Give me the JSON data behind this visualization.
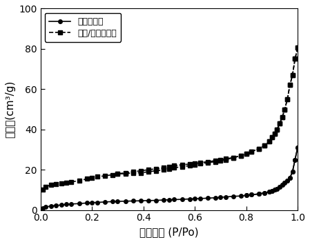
{
  "series1_label": "油页岩半焦",
  "series2_label": "矿物/生物炭材料",
  "series1_x": [
    0.01,
    0.02,
    0.04,
    0.06,
    0.08,
    0.1,
    0.12,
    0.15,
    0.18,
    0.2,
    0.22,
    0.25,
    0.28,
    0.3,
    0.33,
    0.36,
    0.39,
    0.42,
    0.45,
    0.48,
    0.5,
    0.52,
    0.55,
    0.58,
    0.6,
    0.62,
    0.65,
    0.68,
    0.7,
    0.72,
    0.75,
    0.78,
    0.8,
    0.82,
    0.85,
    0.87,
    0.89,
    0.9,
    0.91,
    0.92,
    0.93,
    0.94,
    0.95,
    0.96,
    0.97,
    0.98,
    0.99,
    1.0
  ],
  "series1_y": [
    1.0,
    1.5,
    2.0,
    2.3,
    2.5,
    2.8,
    3.0,
    3.2,
    3.5,
    3.7,
    3.8,
    4.0,
    4.2,
    4.3,
    4.4,
    4.5,
    4.6,
    4.7,
    4.8,
    5.0,
    5.1,
    5.2,
    5.3,
    5.5,
    5.6,
    5.7,
    5.9,
    6.1,
    6.3,
    6.5,
    6.8,
    7.0,
    7.3,
    7.6,
    8.0,
    8.5,
    9.0,
    9.5,
    10.0,
    10.5,
    11.5,
    12.5,
    13.5,
    14.5,
    16.0,
    19.0,
    25.0,
    31.0
  ],
  "series1_desorption_x": [
    1.0,
    0.99,
    0.98,
    0.97,
    0.96,
    0.95,
    0.94,
    0.93,
    0.92,
    0.91,
    0.9,
    0.89,
    0.87,
    0.85,
    0.82,
    0.8
  ],
  "series1_desorption_y": [
    31.0,
    25.0,
    19.0,
    16.0,
    14.5,
    13.5,
    12.5,
    11.5,
    10.5,
    10.0,
    9.5,
    9.0,
    8.5,
    8.0,
    7.6,
    7.3
  ],
  "series2_x": [
    0.01,
    0.02,
    0.04,
    0.06,
    0.08,
    0.1,
    0.12,
    0.15,
    0.18,
    0.2,
    0.22,
    0.25,
    0.28,
    0.3,
    0.33,
    0.36,
    0.39,
    0.42,
    0.45,
    0.48,
    0.5,
    0.52,
    0.55,
    0.58,
    0.6,
    0.62,
    0.65,
    0.68,
    0.7,
    0.72,
    0.75,
    0.78,
    0.8,
    0.82,
    0.85,
    0.87,
    0.89,
    0.9,
    0.91,
    0.92,
    0.93,
    0.94,
    0.95,
    0.96,
    0.97,
    0.98,
    0.99,
    1.0
  ],
  "series2_y": [
    10.0,
    11.5,
    12.5,
    13.0,
    13.3,
    13.5,
    14.0,
    14.5,
    15.5,
    16.0,
    16.5,
    17.0,
    17.5,
    18.0,
    18.0,
    18.5,
    18.5,
    19.0,
    19.5,
    20.0,
    20.5,
    21.0,
    21.5,
    22.0,
    22.5,
    23.0,
    23.5,
    24.0,
    24.5,
    25.0,
    26.0,
    27.0,
    28.0,
    29.0,
    30.5,
    32.0,
    34.0,
    36.0,
    38.0,
    40.0,
    43.0,
    46.0,
    50.0,
    55.0,
    62.0,
    67.0,
    75.0,
    80.5
  ],
  "series2_desorption_x": [
    1.0,
    0.99,
    0.98,
    0.97,
    0.96,
    0.95,
    0.94,
    0.93,
    0.92,
    0.91,
    0.9,
    0.89,
    0.87,
    0.85,
    0.82,
    0.8,
    0.78,
    0.75,
    0.72,
    0.7,
    0.68,
    0.65,
    0.62,
    0.6,
    0.58,
    0.55,
    0.52,
    0.5,
    0.48,
    0.45,
    0.42,
    0.39,
    0.36,
    0.33,
    0.3
  ],
  "series2_desorption_y": [
    80.5,
    75.0,
    67.0,
    62.0,
    55.0,
    50.0,
    46.0,
    43.0,
    40.0,
    38.0,
    36.0,
    34.0,
    32.0,
    30.5,
    29.0,
    28.0,
    27.0,
    26.0,
    25.5,
    25.0,
    24.5,
    24.0,
    23.5,
    23.0,
    22.8,
    22.5,
    22.0,
    21.5,
    21.0,
    20.5,
    20.0,
    19.5,
    19.0,
    18.5,
    18.0
  ],
  "xlabel": "相对压力 (P/Po)",
  "ylabel": "吸附量(cm³/g)",
  "xlim": [
    0.0,
    1.0
  ],
  "ylim": [
    0,
    100
  ],
  "yticks": [
    0,
    20,
    40,
    60,
    80,
    100
  ],
  "xticks": [
    0.0,
    0.2,
    0.4,
    0.6,
    0.8,
    1.0
  ],
  "color": "#000000",
  "linewidth": 1.2,
  "markersize": 4
}
